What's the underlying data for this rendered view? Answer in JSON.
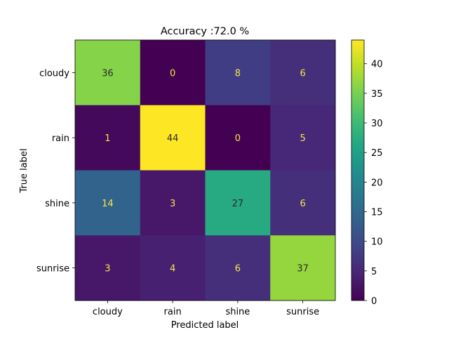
{
  "chart_data": {
    "type": "heatmap",
    "title": "Accuracy :72.0 %",
    "xlabel": "Predicted label",
    "ylabel": "True label",
    "x_categories": [
      "cloudy",
      "rain",
      "shine",
      "sunrise"
    ],
    "y_categories": [
      "cloudy",
      "rain",
      "shine",
      "sunrise"
    ],
    "values": [
      [
        36,
        0,
        8,
        6
      ],
      [
        1,
        44,
        0,
        5
      ],
      [
        14,
        3,
        27,
        6
      ],
      [
        3,
        4,
        6,
        37
      ]
    ],
    "colormap": "viridis",
    "colorbar": {
      "min": 0,
      "max": 44,
      "ticks": [
        0,
        5,
        10,
        15,
        20,
        25,
        30,
        35,
        40
      ]
    }
  }
}
